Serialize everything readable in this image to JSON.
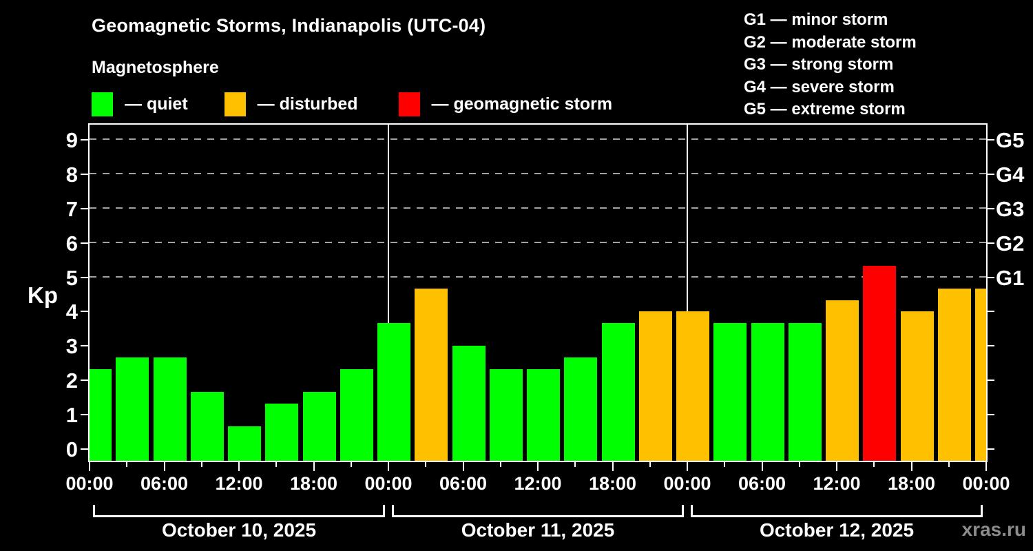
{
  "title": "Geomagnetic Storms, Indianapolis (UTC-04)",
  "subtitle": "Magnetosphere",
  "legend": {
    "items": [
      {
        "id": "quiet",
        "label": "— quiet",
        "color": "#00ff00"
      },
      {
        "id": "disturbed",
        "label": "— disturbed",
        "color": "#ffc000"
      },
      {
        "id": "storm",
        "label": "— geomagnetic storm",
        "color": "#ff0000"
      }
    ]
  },
  "g_scale_legend": {
    "lines": [
      "G1 — minor storm",
      "G2 — moderate storm",
      "G3 — strong storm",
      "G4 — severe storm",
      "G5 — extreme storm"
    ]
  },
  "watermark": "xras.ru",
  "chart_data": {
    "type": "bar",
    "ylabel": "Kp",
    "y_ticks": [
      0,
      1,
      2,
      3,
      4,
      5,
      6,
      7,
      8,
      9
    ],
    "y_range": [
      -0.34,
      9.44
    ],
    "grid_levels_kp": [
      5,
      6,
      7,
      8,
      9
    ],
    "grid_style": "dashed",
    "right_axis_labels": [
      {
        "kp": 5,
        "label": "G1"
      },
      {
        "kp": 6,
        "label": "G2"
      },
      {
        "kp": 7,
        "label": "G3"
      },
      {
        "kp": 8,
        "label": "G4"
      },
      {
        "kp": 9,
        "label": "G5"
      }
    ],
    "x_major_label_cycle": [
      "00:00",
      "06:00",
      "12:00",
      "18:00"
    ],
    "hours_per_bar": 3,
    "bars_per_day": 8,
    "status_colors": {
      "quiet": "#00ff00",
      "disturbed": "#ffc000",
      "storm": "#ff0000"
    },
    "days": [
      {
        "date": "October 10, 2025",
        "kp": [
          2.33,
          2.67,
          2.67,
          1.67,
          0.67,
          1.33,
          1.67,
          2.33
        ],
        "status": [
          "quiet",
          "quiet",
          "quiet",
          "quiet",
          "quiet",
          "quiet",
          "quiet",
          "quiet"
        ]
      },
      {
        "date": "October 11, 2025",
        "kp": [
          3.67,
          4.67,
          3.0,
          2.33,
          2.33,
          2.67,
          3.67,
          4.0
        ],
        "status": [
          "quiet",
          "disturbed",
          "quiet",
          "quiet",
          "quiet",
          "quiet",
          "quiet",
          "disturbed"
        ]
      },
      {
        "date": "October 12, 2025",
        "kp": [
          4.0,
          3.67,
          3.67,
          3.67,
          4.33,
          5.33,
          4.0,
          4.67
        ],
        "status": [
          "disturbed",
          "quiet",
          "quiet",
          "quiet",
          "disturbed",
          "storm",
          "disturbed",
          "disturbed"
        ]
      }
    ],
    "next_partial_bar": {
      "kp": 4.67,
      "status": "disturbed"
    }
  }
}
